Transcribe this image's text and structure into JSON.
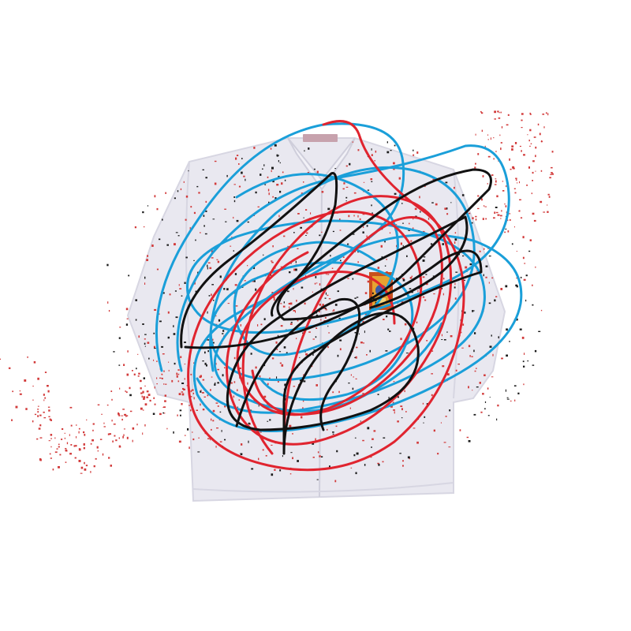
{
  "scene": {
    "background_color": "#ffffff",
    "subject": "shirt",
    "shirt_color": "#e9e8f0",
    "shirt_shadow_color": "#d7d6e2",
    "shirt_line_color": "#cfcedb",
    "collar_label_color": "#c7a2ad",
    "pocket_badge_colors": [
      "#c8501c",
      "#e7a331",
      "#3b5ba9",
      "#f1d27a"
    ]
  },
  "scribbles": {
    "stroke_colors": {
      "red": "#e0242f",
      "blue": "#1a9fd9",
      "black": "#111111"
    },
    "speckle_colors": [
      "#d23a3a",
      "#1b1b1b"
    ]
  }
}
